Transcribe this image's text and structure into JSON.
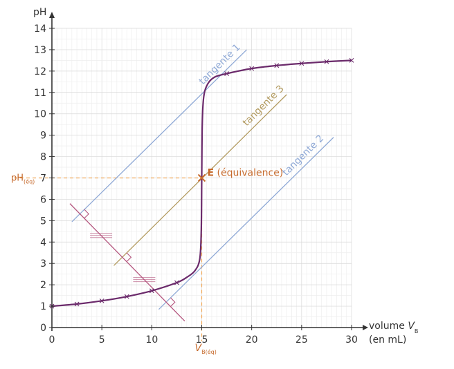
{
  "chart_data": {
    "type": "line",
    "title": "",
    "ylabel": "pH",
    "xlabel": "volume",
    "xlabel_var": "V",
    "xlabel_sub": "B",
    "xlabel_unit": "(en mL)",
    "xlim": [
      0,
      30
    ],
    "ylim": [
      0,
      14
    ],
    "x_ticks": [
      0,
      5,
      10,
      15,
      20,
      25,
      30
    ],
    "y_ticks": [
      0,
      1,
      2,
      3,
      4,
      5,
      6,
      7,
      8,
      9,
      10,
      11,
      12,
      13,
      14
    ],
    "grid": true,
    "colors": {
      "curve": "#6b2a6b",
      "tangent1": "#8fa9d6",
      "tangent2": "#8fa9d6",
      "tangent3": "#b29a5f",
      "perpendicular": "#b5577f",
      "equivalence": "#c66a2c",
      "dashed": "#f0a95a",
      "axis": "#333333",
      "grid_minor": "#eeeeee",
      "grid_major": "#d8d8d8"
    },
    "series": [
      {
        "points": [
          [
            0,
            1.0
          ],
          [
            2.5,
            1.1
          ],
          [
            5,
            1.25
          ],
          [
            7.5,
            1.45
          ],
          [
            10,
            1.72
          ],
          [
            12.5,
            2.1
          ],
          [
            13.5,
            2.35
          ],
          [
            14.3,
            2.65
          ],
          [
            14.8,
            3.2
          ],
          [
            14.95,
            4.5
          ],
          [
            15,
            7.0
          ],
          [
            15.05,
            9.5
          ],
          [
            15.2,
            10.8
          ],
          [
            15.6,
            11.4
          ],
          [
            16.3,
            11.72
          ],
          [
            17.5,
            11.88
          ],
          [
            20,
            12.12
          ],
          [
            22.5,
            12.26
          ],
          [
            25,
            12.36
          ],
          [
            27.5,
            12.44
          ],
          [
            30,
            12.5
          ]
        ],
        "markers_x": [
          0,
          2.5,
          5,
          7.5,
          10,
          12.5,
          17.5,
          20,
          22.5,
          25,
          27.5,
          30
        ]
      }
    ],
    "tangents": [
      {
        "label": "tangente 1",
        "from": [
          2,
          4.95
        ],
        "to": [
          19.5,
          13.0
        ]
      },
      {
        "label": "tangente 2",
        "from": [
          10.7,
          0.85
        ],
        "to": [
          28.2,
          8.9
        ]
      },
      {
        "label": "tangente 3",
        "from": [
          6.2,
          2.9
        ],
        "to": [
          23.5,
          10.9
        ]
      }
    ],
    "perpendicular": {
      "from": [
        1.8,
        5.8
      ],
      "to": [
        13.3,
        0.3
      ]
    },
    "equivalence": {
      "point": [
        15,
        7
      ],
      "marker_label": "E",
      "text": "(équivalence)"
    },
    "y_marker_label": "pH",
    "y_marker_sub": "(éq)",
    "x_marker_label": "V",
    "x_marker_sub": "B(éq)"
  }
}
